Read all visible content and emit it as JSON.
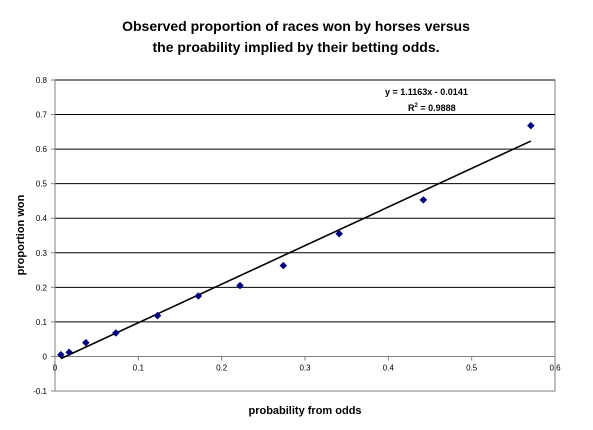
{
  "chart_data": {
    "type": "scatter",
    "title_lines": [
      "Observed proportion of races won by horses versus",
      "the proability implied by their betting odds."
    ],
    "xlabel": "probability from odds",
    "ylabel": "proportion won",
    "xlim": [
      0,
      0.6
    ],
    "ylim": [
      -0.1,
      0.8
    ],
    "x_ticks": [
      0,
      0.1,
      0.2,
      0.3,
      0.4,
      0.5,
      0.6
    ],
    "x_tick_labels": [
      "0",
      "0.1",
      "0.2",
      "0.3",
      "0.4",
      "0.5",
      "0.6"
    ],
    "y_ticks": [
      -0.1,
      0,
      0.1,
      0.2,
      0.3,
      0.4,
      0.5,
      0.6,
      0.7,
      0.8
    ],
    "y_tick_labels": [
      "-0.1",
      "0",
      "0.1",
      "0.2",
      "0.3",
      "0.4",
      "0.5",
      "0.6",
      "0.7",
      "0.8"
    ],
    "grid": "horizontal",
    "legend": "none",
    "marker": "diamond",
    "marker_color": "#000080",
    "line_color": "#000000",
    "series": [
      {
        "x": [
          0.007,
          0.017,
          0.037,
          0.073,
          0.123,
          0.172,
          0.222,
          0.274,
          0.341,
          0.442,
          0.571
        ],
        "y": [
          0.005,
          0.012,
          0.04,
          0.068,
          0.118,
          0.175,
          0.205,
          0.263,
          0.355,
          0.453,
          0.668
        ]
      }
    ],
    "trendline": {
      "slope": 1.1163,
      "intercept": -0.0141,
      "x_range": [
        0.007,
        0.571
      ]
    },
    "annotations": {
      "equation": "y = 1.1163x - 0.0141",
      "r2_base": "R",
      "r2_sup": "2",
      "r2_value": " = 0.9888"
    }
  }
}
